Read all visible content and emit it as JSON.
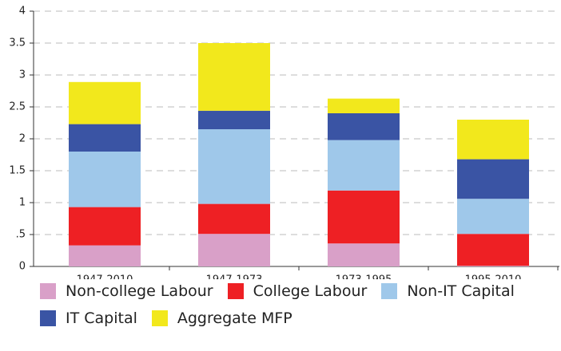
{
  "chart_data": {
    "type": "stacked_bar",
    "categories": [
      "1947-2010",
      "1947-1973",
      "1973-1995",
      "1995-2010"
    ],
    "series": [
      {
        "name": "Non-college Labour",
        "color": "#d9a0c8",
        "values": [
          0.33,
          0.51,
          0.36,
          0.01
        ]
      },
      {
        "name": "College Labour",
        "color": "#ee2024",
        "values": [
          0.6,
          0.47,
          0.83,
          0.5
        ]
      },
      {
        "name": "Non-IT Capital",
        "color": "#9fc8ea",
        "values": [
          0.87,
          1.17,
          0.79,
          0.55
        ]
      },
      {
        "name": "IT Capital",
        "color": "#3a54a4",
        "values": [
          0.43,
          0.29,
          0.42,
          0.62
        ]
      },
      {
        "name": "Aggregate MFP",
        "color": "#f2e81c",
        "values": [
          0.66,
          1.06,
          0.23,
          0.62
        ]
      }
    ],
    "ylim": [
      0,
      4
    ],
    "yticks": [
      0,
      {
        "value": 0.5,
        "label": ".5"
      },
      1,
      1.5,
      2,
      2.5,
      3,
      3.5,
      4
    ],
    "grid": true
  }
}
